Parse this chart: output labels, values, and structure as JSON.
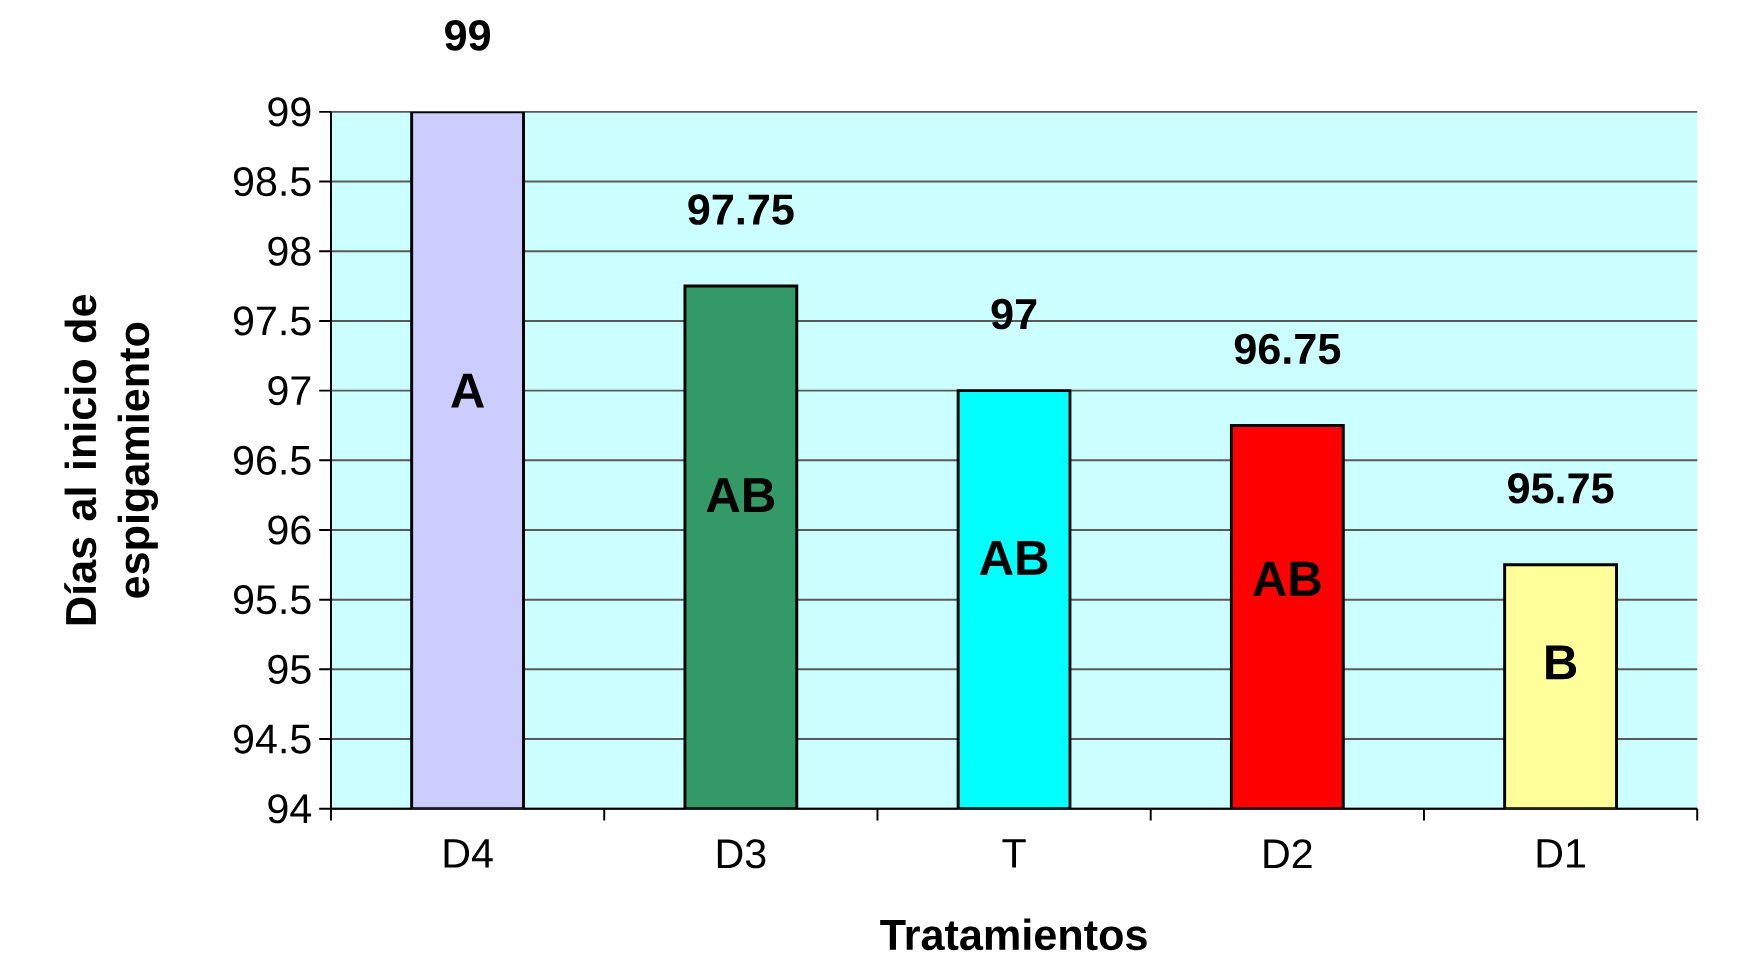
{
  "chart_data": {
    "type": "bar",
    "xlabel": "Tratamientos",
    "ylabel": "Días al inicio de espigamiento",
    "categories": [
      "D4",
      "D3",
      "T",
      "D2",
      "D1"
    ],
    "values": [
      99,
      97.75,
      97,
      96.75,
      95.75
    ],
    "colors": [
      "#ccccff",
      "#339966",
      "#00ffff",
      "#ff0000",
      "#ffff99"
    ],
    "ylim": [
      94,
      99
    ],
    "yticks": [
      94,
      94.5,
      95,
      95.5,
      96,
      96.5,
      97,
      97.5,
      98,
      98.5,
      99
    ],
    "grid": "y",
    "data_labels": true,
    "annotations": [
      "A",
      "AB",
      "AB",
      "AB",
      "B"
    ]
  }
}
